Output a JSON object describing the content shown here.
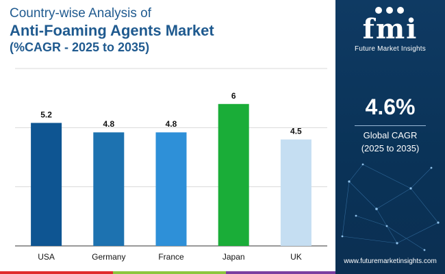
{
  "header": {
    "line1": "Country-wise Analysis of",
    "line2": "Anti-Foaming Agents Market",
    "line3": "(%CAGR - 2025 to 2035)"
  },
  "colors": {
    "title": "#1f5a8f",
    "panel_bg": "#0b3358",
    "bottom_bar": [
      "#e02b2b",
      "#8dc63f",
      "#7b3fa0",
      "#0b3358"
    ]
  },
  "chart_data": {
    "type": "bar",
    "categories": [
      "USA",
      "Germany",
      "France",
      "Japan",
      "UK"
    ],
    "values": [
      5.2,
      4.8,
      4.8,
      6,
      4.5
    ],
    "value_labels": [
      "5.2",
      "4.8",
      "4.8",
      "6",
      "4.5"
    ],
    "colors": [
      "#0e5592",
      "#1d72b0",
      "#2e90d8",
      "#1aad38",
      "#c5def2"
    ],
    "ylim": [
      0,
      7.5
    ],
    "grid": true,
    "title": "",
    "xlabel": "",
    "ylabel": ""
  },
  "panel": {
    "logo_text": "fmi",
    "logo_subtitle": "Future Market Insights",
    "cagr_value": "4.6%",
    "cagr_label_line1": "Global CAGR",
    "cagr_label_line2": "(2025 to 2035)",
    "website": "www.futuremarketinsights.com"
  }
}
